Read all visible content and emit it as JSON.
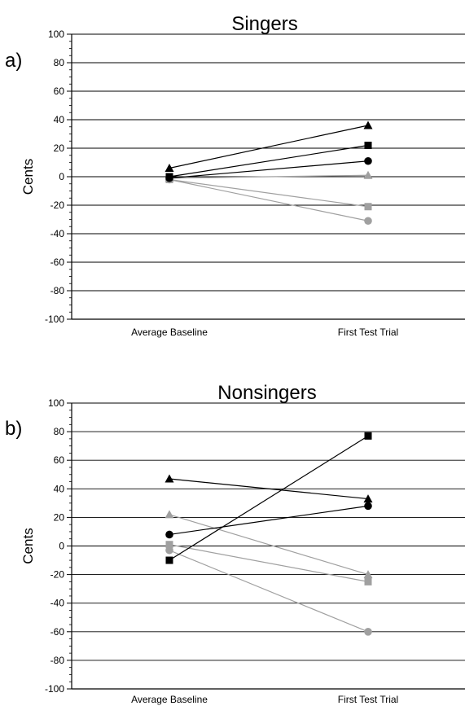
{
  "chart_data": [
    {
      "type": "line",
      "panel_label": "a)",
      "title": "Singers",
      "ylabel": "Cents",
      "xlabel": "",
      "categories": [
        "Average Baseline",
        "First Test Trial"
      ],
      "ylim": [
        -100,
        100
      ],
      "yticks": [
        100,
        80,
        60,
        40,
        20,
        0,
        -20,
        -40,
        -60,
        -80,
        -100
      ],
      "grid": true,
      "legend": "none",
      "series": [
        {
          "color": "#000000",
          "marker": "triangle",
          "values": [
            6,
            36
          ]
        },
        {
          "color": "#000000",
          "marker": "square",
          "values": [
            0,
            22
          ]
        },
        {
          "color": "#000000",
          "marker": "circle",
          "values": [
            -1,
            11
          ]
        },
        {
          "color": "#a0a0a0",
          "marker": "triangle",
          "values": [
            -1,
            1
          ]
        },
        {
          "color": "#a0a0a0",
          "marker": "square",
          "values": [
            -2,
            -21
          ]
        },
        {
          "color": "#a0a0a0",
          "marker": "circle",
          "values": [
            -2,
            -31
          ]
        }
      ]
    },
    {
      "type": "line",
      "panel_label": "b)",
      "title": "Nonsingers",
      "ylabel": "Cents",
      "xlabel": "",
      "categories": [
        "Average Baseline",
        "First Test Trial"
      ],
      "ylim": [
        -100,
        100
      ],
      "yticks": [
        100,
        80,
        60,
        40,
        20,
        0,
        -20,
        -40,
        -60,
        -80,
        -100
      ],
      "grid": true,
      "legend": "none",
      "series": [
        {
          "color": "#000000",
          "marker": "triangle",
          "values": [
            47,
            33
          ]
        },
        {
          "color": "#000000",
          "marker": "square",
          "values": [
            -10,
            77
          ]
        },
        {
          "color": "#000000",
          "marker": "circle",
          "values": [
            8,
            28
          ]
        },
        {
          "color": "#a0a0a0",
          "marker": "triangle",
          "values": [
            22,
            -20
          ]
        },
        {
          "color": "#a0a0a0",
          "marker": "square",
          "values": [
            1,
            -25
          ]
        },
        {
          "color": "#a0a0a0",
          "marker": "circle",
          "values": [
            -3,
            -60
          ]
        }
      ]
    }
  ]
}
